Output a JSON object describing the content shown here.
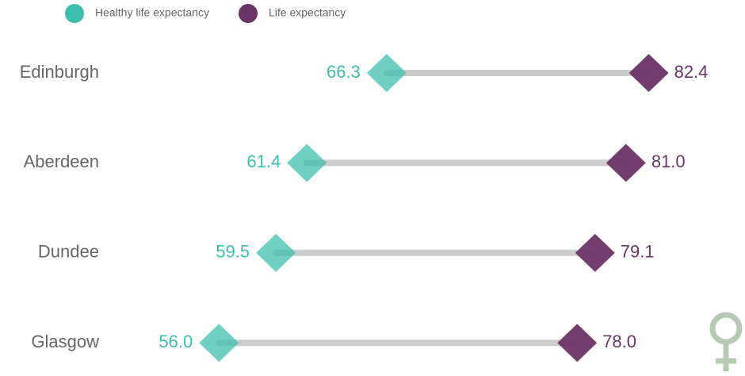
{
  "chart_data": {
    "type": "dumbbell",
    "categories": [
      "Edinburgh",
      "Aberdeen",
      "Dundee",
      "Glasgow"
    ],
    "series": [
      {
        "name": "Healthy life expectancy",
        "color": "#3dbfad",
        "values": [
          66.3,
          61.4,
          59.5,
          56.0
        ],
        "value_labels": [
          "66.3",
          "61.4",
          "59.5",
          "56.0"
        ]
      },
      {
        "name": "Life expectancy",
        "color": "#6b3466",
        "values": [
          82.4,
          81.0,
          79.1,
          78.0
        ],
        "value_labels": [
          "82.4",
          "81.0",
          "79.1",
          "78.0"
        ]
      }
    ],
    "xlim": [
      50,
      85
    ],
    "legend": "top-left"
  }
}
